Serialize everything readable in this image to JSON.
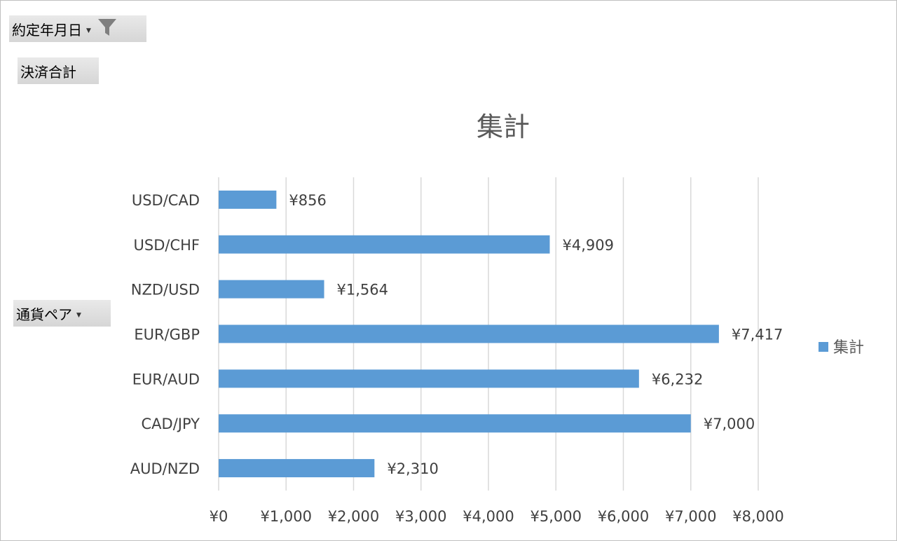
{
  "pivot_buttons": {
    "filter_label": "約定年月日",
    "values_label": "決済合計",
    "axis_label": "通貨ペア"
  },
  "colors": {
    "bar": "#5b9bd5"
  },
  "chart_data": {
    "type": "bar",
    "orientation": "horizontal",
    "title": "集計",
    "categories": [
      "AUD/NZD",
      "CAD/JPY",
      "EUR/AUD",
      "EUR/GBP",
      "NZD/USD",
      "USD/CHF",
      "USD/CAD"
    ],
    "series": [
      {
        "name": "集計",
        "values": [
          2310,
          7000,
          6232,
          7417,
          1564,
          4909,
          856
        ]
      }
    ],
    "data_labels": [
      "¥2,310",
      "¥7,000",
      "¥6,232",
      "¥7,417",
      "¥1,564",
      "¥4,909",
      "¥856"
    ],
    "xlim": [
      0,
      8000
    ],
    "x_ticks": [
      0,
      1000,
      2000,
      3000,
      4000,
      5000,
      6000,
      7000,
      8000
    ],
    "x_tick_labels": [
      "¥0",
      "¥1,000",
      "¥2,000",
      "¥3,000",
      "¥4,000",
      "¥5,000",
      "¥6,000",
      "¥7,000",
      "¥8,000"
    ],
    "grid": true,
    "legend": {
      "position": "right",
      "entries": [
        "集計"
      ]
    }
  }
}
